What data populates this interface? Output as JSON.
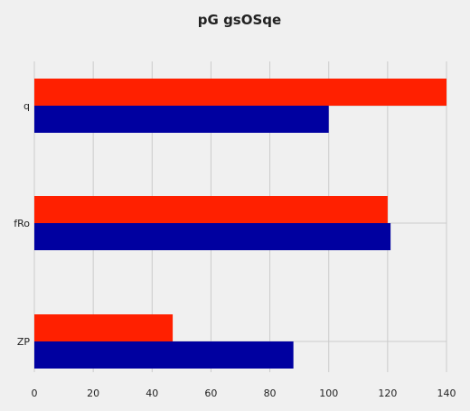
{
  "chart_data": {
    "type": "bar",
    "orientation": "horizontal",
    "title": "pG gsOSqe",
    "xlabel": "",
    "ylabel": "",
    "categories": [
      "q",
      "fRo",
      "ZP"
    ],
    "series": [
      {
        "color": "#ff2000",
        "values": [
          140,
          120,
          47
        ]
      },
      {
        "color": "#0000a0",
        "values": [
          100,
          121,
          88
        ]
      }
    ],
    "xlim": [
      0,
      140
    ],
    "xticks": [
      "0",
      "20",
      "40",
      "60",
      "80",
      "100",
      "120",
      "140"
    ],
    "grid": true,
    "legend": "none"
  }
}
